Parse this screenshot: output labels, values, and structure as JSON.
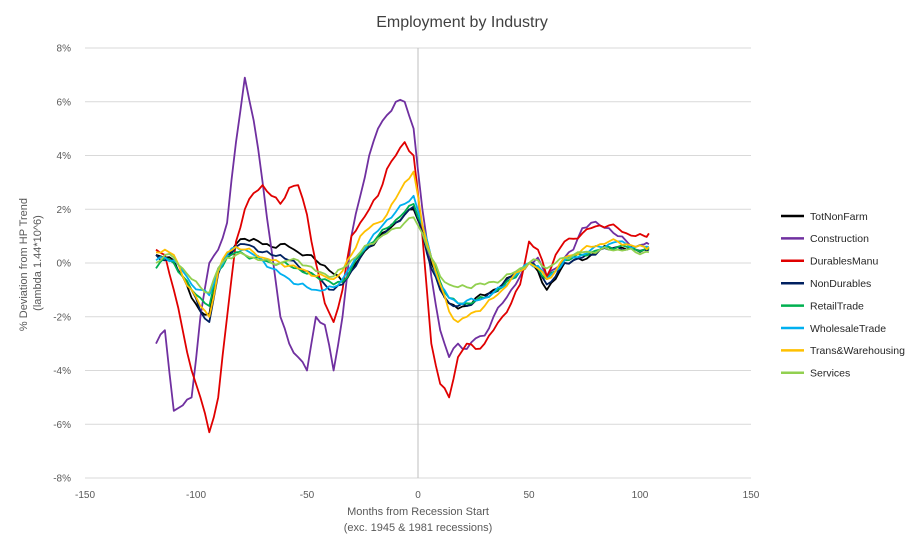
{
  "chart_data": {
    "type": "line",
    "title": "Employment by Industry",
    "xlabel_lines": [
      "Months from Recession Start",
      "(exc. 1945 & 1981 recessions)"
    ],
    "ylabel_lines": [
      "% Deviation from HP Trend",
      "(lambda 1.44*10^6)"
    ],
    "xlim": [
      -150,
      150
    ],
    "ylim": [
      -8,
      8
    ],
    "x_ticks": [
      "-150",
      "-100",
      "-50",
      "0",
      "50",
      "100",
      "150"
    ],
    "y_ticks": [
      "8%",
      "6%",
      "4%",
      "2%",
      "0%",
      "-2%",
      "-4%",
      "-6%",
      "-8%"
    ],
    "x": [
      -118,
      -114,
      -110,
      -106,
      -102,
      -98,
      -94,
      -90,
      -86,
      -82,
      -78,
      -74,
      -70,
      -66,
      -62,
      -58,
      -54,
      -50,
      -46,
      -42,
      -38,
      -34,
      -30,
      -26,
      -22,
      -18,
      -14,
      -10,
      -6,
      -2,
      2,
      6,
      10,
      14,
      18,
      22,
      26,
      30,
      34,
      38,
      42,
      46,
      50,
      54,
      58,
      62,
      66,
      70,
      74,
      78,
      82,
      86,
      90,
      94,
      98,
      102,
      104
    ],
    "series": [
      {
        "name": "TotNonFarm",
        "color": "#000000",
        "values": [
          0.3,
          0.2,
          0.1,
          -0.5,
          -1.3,
          -1.8,
          -1.9,
          -0.2,
          0.3,
          0.7,
          0.9,
          0.9,
          0.7,
          0.6,
          0.7,
          0.6,
          0.4,
          0.3,
          0.1,
          -0.1,
          -0.4,
          -0.7,
          -0.3,
          0.2,
          0.6,
          0.9,
          1.2,
          1.5,
          1.8,
          2.0,
          1.3,
          0.0,
          -0.9,
          -1.5,
          -1.7,
          -1.6,
          -1.3,
          -1.2,
          -1.0,
          -0.8,
          -0.5,
          -0.3,
          0.0,
          -0.3,
          -1.0,
          -0.6,
          0.0,
          0.1,
          0.1,
          0.3,
          0.5,
          0.6,
          0.6,
          0.5,
          0.5,
          0.5,
          0.5
        ]
      },
      {
        "name": "Construction",
        "color": "#7030A0",
        "values": [
          -3.0,
          -2.5,
          -5.5,
          -5.3,
          -5.0,
          -2.0,
          0.0,
          0.5,
          1.5,
          4.5,
          6.9,
          5.3,
          3.0,
          0.5,
          -2.0,
          -3.0,
          -3.5,
          -4.0,
          -2.0,
          -2.3,
          -4.0,
          -2.0,
          1.0,
          2.5,
          4.0,
          5.0,
          5.5,
          6.0,
          6.0,
          5.0,
          2.0,
          -0.5,
          -2.5,
          -3.5,
          -3.0,
          -3.2,
          -2.8,
          -2.7,
          -2.0,
          -1.5,
          -1.0,
          -0.5,
          0.0,
          0.2,
          -0.5,
          -0.2,
          0.2,
          0.5,
          1.3,
          1.5,
          1.4,
          1.3,
          1.0,
          0.8,
          0.6,
          0.7,
          0.7
        ]
      },
      {
        "name": "DurablesManu",
        "color": "#E00000",
        "values": [
          0.5,
          0.3,
          -1.0,
          -2.5,
          -4.0,
          -5.0,
          -6.3,
          -5.0,
          -2.0,
          0.8,
          2.0,
          2.6,
          2.9,
          2.5,
          2.2,
          2.8,
          2.9,
          1.8,
          0.0,
          -1.5,
          -2.2,
          -1.0,
          1.0,
          1.5,
          2.0,
          2.5,
          3.5,
          4.0,
          4.5,
          4.0,
          1.0,
          -3.0,
          -4.5,
          -5.0,
          -3.5,
          -3.0,
          -3.2,
          -3.0,
          -2.5,
          -2.0,
          -1.5,
          -0.8,
          0.8,
          0.5,
          -0.5,
          0.3,
          0.8,
          0.9,
          1.1,
          1.3,
          1.4,
          1.4,
          1.3,
          1.1,
          1.0,
          1.0,
          1.1
        ]
      },
      {
        "name": "NonDurables",
        "color": "#002060",
        "values": [
          0.3,
          0.1,
          0.0,
          -0.5,
          -1.0,
          -1.8,
          -2.2,
          -0.4,
          0.3,
          0.6,
          0.7,
          0.6,
          0.4,
          0.3,
          0.3,
          0.1,
          -0.1,
          -0.3,
          -0.5,
          -0.8,
          -1.0,
          -0.8,
          -0.3,
          0.2,
          0.6,
          0.9,
          1.2,
          1.5,
          1.8,
          2.1,
          1.1,
          -0.2,
          -1.0,
          -1.5,
          -1.6,
          -1.6,
          -1.4,
          -1.3,
          -1.1,
          -0.8,
          -0.5,
          -0.3,
          0.0,
          -0.2,
          -0.8,
          -0.5,
          0.0,
          0.1,
          0.2,
          0.3,
          0.5,
          0.5,
          0.6,
          0.5,
          0.5,
          0.5,
          0.5
        ]
      },
      {
        "name": "RetailTrade",
        "color": "#00B050",
        "values": [
          -0.2,
          0.2,
          0.0,
          -0.5,
          -1.0,
          -1.3,
          -1.6,
          -0.3,
          0.2,
          0.4,
          0.3,
          0.2,
          0.1,
          0.0,
          0.0,
          -0.1,
          -0.2,
          -0.4,
          -0.5,
          -0.6,
          -0.8,
          -0.7,
          -0.2,
          0.3,
          0.7,
          1.0,
          1.3,
          1.6,
          1.9,
          2.2,
          1.4,
          0.2,
          -0.7,
          -1.3,
          -1.5,
          -1.5,
          -1.4,
          -1.3,
          -1.1,
          -0.9,
          -0.6,
          -0.3,
          0.0,
          -0.2,
          -0.6,
          -0.3,
          0.1,
          0.2,
          0.3,
          0.4,
          0.5,
          0.6,
          0.6,
          0.6,
          0.5,
          0.5,
          0.5
        ]
      },
      {
        "name": "WholesaleTrade",
        "color": "#00B0F0",
        "values": [
          0.1,
          0.2,
          0.1,
          -0.3,
          -0.8,
          -1.0,
          -1.2,
          -0.3,
          0.3,
          0.6,
          0.5,
          0.3,
          0.1,
          -0.2,
          -0.4,
          -0.6,
          -0.8,
          -0.9,
          -1.0,
          -1.0,
          -0.9,
          -0.6,
          -0.1,
          0.4,
          0.8,
          1.2,
          1.6,
          1.9,
          2.2,
          2.5,
          1.4,
          0.2,
          -0.8,
          -1.3,
          -1.5,
          -1.4,
          -1.4,
          -1.3,
          -1.1,
          -0.9,
          -0.6,
          -0.3,
          0.0,
          -0.1,
          -0.6,
          -0.3,
          0.1,
          0.2,
          0.3,
          0.5,
          0.6,
          0.7,
          0.8,
          0.7,
          0.6,
          0.6,
          0.6
        ]
      },
      {
        "name": "Trans&Warehousing",
        "color": "#FFC000",
        "values": [
          0.4,
          0.5,
          0.3,
          -0.5,
          -1.0,
          -1.6,
          -2.0,
          -0.3,
          0.4,
          0.6,
          0.5,
          0.4,
          0.2,
          0.1,
          0.0,
          -0.1,
          -0.2,
          -0.3,
          -0.5,
          -0.5,
          -0.6,
          -0.3,
          0.3,
          1.0,
          1.3,
          1.5,
          1.8,
          2.4,
          3.0,
          3.4,
          1.4,
          0.2,
          -0.8,
          -1.8,
          -2.2,
          -2.0,
          -1.8,
          -1.6,
          -1.3,
          -1.0,
          -0.6,
          -0.3,
          0.0,
          -0.2,
          -0.6,
          -0.3,
          0.2,
          0.3,
          0.5,
          0.6,
          0.7,
          0.8,
          0.8,
          0.7,
          0.6,
          0.6,
          0.6
        ]
      },
      {
        "name": "Services",
        "color": "#92D050",
        "values": [
          0.0,
          0.3,
          0.2,
          -0.2,
          -0.6,
          -0.9,
          -1.1,
          -0.2,
          0.2,
          0.3,
          0.3,
          0.2,
          0.1,
          0.0,
          0.0,
          0.1,
          0.1,
          -0.1,
          -0.3,
          -0.4,
          -0.5,
          -0.2,
          0.1,
          0.4,
          0.7,
          0.9,
          1.1,
          1.3,
          1.5,
          1.7,
          1.1,
          0.2,
          -0.5,
          -0.8,
          -0.9,
          -0.9,
          -0.8,
          -0.8,
          -0.7,
          -0.6,
          -0.4,
          -0.2,
          0.0,
          0.1,
          -0.2,
          0.0,
          0.2,
          0.3,
          0.4,
          0.4,
          0.5,
          0.5,
          0.5,
          0.5,
          0.4,
          0.4,
          0.4
        ]
      }
    ]
  }
}
